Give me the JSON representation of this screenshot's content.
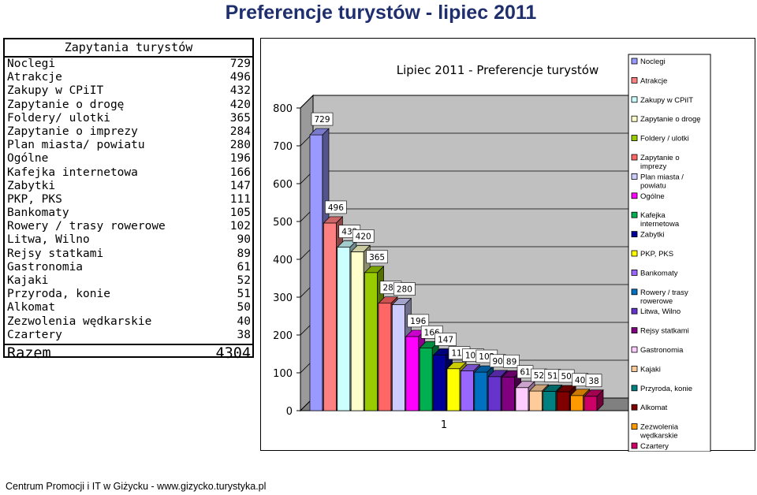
{
  "page_title": "Preferencje turystów - lipiec 2011",
  "table": {
    "title": "Zapytania turystów",
    "rows": [
      {
        "label": "Noclegi",
        "value": "729"
      },
      {
        "label": "Atrakcje",
        "value": "496"
      },
      {
        "label": "Zakupy w CPiIT",
        "value": "432"
      },
      {
        "label": "Zapytanie o drogę",
        "value": "420"
      },
      {
        "label": "Foldery/ ulotki",
        "value": "365"
      },
      {
        "label": "Zapytanie o imprezy",
        "value": "284"
      },
      {
        "label": "Plan miasta/ powiatu",
        "value": "280"
      },
      {
        "label": "Ogólne",
        "value": "196"
      },
      {
        "label": "Kafejka internetowa",
        "value": "166"
      },
      {
        "label": "Zabytki",
        "value": "147"
      },
      {
        "label": "PKP, PKS",
        "value": "111"
      },
      {
        "label": "Bankomaty",
        "value": "105"
      },
      {
        "label": "Rowery / trasy rowerowe",
        "value": "102"
      },
      {
        "label": "Litwa, Wilno",
        "value": "90"
      },
      {
        "label": "Rejsy statkami",
        "value": "89"
      },
      {
        "label": "Gastronomia",
        "value": "61"
      },
      {
        "label": "Kajaki",
        "value": "52"
      },
      {
        "label": "Przyroda, konie",
        "value": "51"
      },
      {
        "label": "Alkomat",
        "value": "50"
      },
      {
        "label": "Zezwolenia wędkarskie",
        "value": "40"
      },
      {
        "label": "Czartery",
        "value": "38"
      }
    ],
    "total_label": "Razem",
    "total_value": "4304"
  },
  "chart_data": {
    "type": "bar",
    "title": "Lipiec 2011 - Preferencje turystów",
    "categories": [
      "1"
    ],
    "ylim": [
      0,
      800
    ],
    "yticks": [
      0,
      100,
      200,
      300,
      400,
      500,
      600,
      700,
      800
    ],
    "grid": true,
    "legend_position": "right",
    "series": [
      {
        "name": "Noclegi",
        "value": 729,
        "color": "#9999ff"
      },
      {
        "name": "Atrakcje",
        "value": 496,
        "color": "#ff8080"
      },
      {
        "name": "Zakupy w CPiIT",
        "value": 432,
        "color": "#ccffff"
      },
      {
        "name": "Zapytanie o drogę",
        "value": 420,
        "color": "#ffffcc"
      },
      {
        "name": "Foldery / ulotki",
        "value": 365,
        "color": "#99cc00"
      },
      {
        "name": "Zapytanie o imprezy",
        "value": 284,
        "color": "#ff6666"
      },
      {
        "name": "Plan miasta / powiatu",
        "value": 280,
        "color": "#ccccff"
      },
      {
        "name": "Ogólne",
        "value": 196,
        "color": "#ff00ff"
      },
      {
        "name": "Kafejka internetowa",
        "value": 166,
        "color": "#00b050"
      },
      {
        "name": "Zabytki",
        "value": 147,
        "color": "#000099"
      },
      {
        "name": "PKP, PKS",
        "value": 111,
        "color": "#ffff00"
      },
      {
        "name": "Bankomaty",
        "value": 105,
        "color": "#9966ff"
      },
      {
        "name": "Rowery / trasy rowerowe",
        "value": 102,
        "color": "#0070c0"
      },
      {
        "name": "Litwa, Wilno",
        "value": 90,
        "color": "#6633cc"
      },
      {
        "name": "Rejsy statkami",
        "value": 89,
        "color": "#800080"
      },
      {
        "name": "Gastronomia",
        "value": 61,
        "color": "#ffccff"
      },
      {
        "name": "Kajaki",
        "value": 52,
        "color": "#ffcc99"
      },
      {
        "name": "Przyroda, konie",
        "value": 51,
        "color": "#008080"
      },
      {
        "name": "Alkomat",
        "value": 50,
        "color": "#800000"
      },
      {
        "name": "Zezwolenia wędkarskie",
        "value": 40,
        "color": "#ff9900"
      },
      {
        "name": "Czartery",
        "value": 38,
        "color": "#cc0066"
      }
    ],
    "extra_color": "#00cc33",
    "legend_labels": [
      "Noclegi",
      "Atrakcje",
      "Zakupy w CPiIT",
      "Zapytanie o drogę",
      "Foldery / ulotki",
      "Zapytanie o imprezy",
      "Plan miasta / powiatu",
      "Ogólne",
      "Kafejka internetowa",
      "Zabytki",
      "PKP, PKS",
      "Bankomaty",
      "Rowery / trasy rowerowe",
      "Litwa, Wilno",
      "Rejsy statkami",
      "Gastronomia",
      "Kajaki",
      "Przyroda, konie",
      "Alkomat",
      "Zezwolenia wędkarskie",
      "Czartery"
    ]
  },
  "footer": "Centrum Promocji i IT w Giżycku - www.gizycko.turystyka.pl"
}
